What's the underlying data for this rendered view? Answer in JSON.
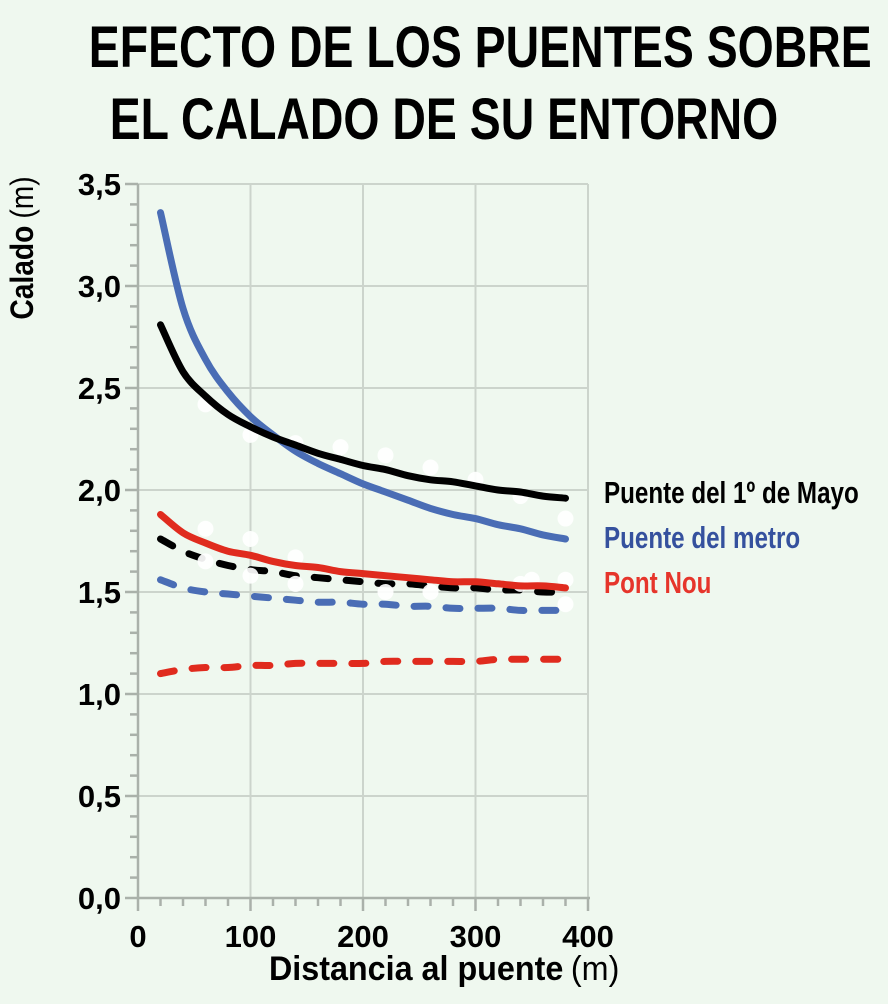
{
  "page": {
    "background": "#eff8ef"
  },
  "title": {
    "line1": "EFECTO DE LOS PUENTES SOBRE",
    "line2": "EL CALADO DE SU ENTORNO"
  },
  "colors": {
    "background": "#eff8ef",
    "grid": "#ccd4cc",
    "axis": "#aab1aa",
    "marker": "#ffffff",
    "black": "#000000",
    "blue_line": "#4a6db5",
    "red_line": "#e02b1e",
    "blue_legend": "#35519e",
    "red_legend": "#e6352b"
  },
  "legend": {
    "items": [
      {
        "label": "Puente del 1º de Mayo",
        "color": "#000000"
      },
      {
        "label": "Puente del metro",
        "color": "#35519e"
      },
      {
        "label": "Pont Nou",
        "color": "#e6352b"
      }
    ]
  },
  "chart_data": {
    "type": "line",
    "title": "EFECTO DE LOS PUENTES SOBRE EL CALADO DE SU ENTORNO",
    "xlabel": "Distancia al puente",
    "xlabel_unit": "(m)",
    "ylabel": "Calado",
    "ylabel_unit": "(m)",
    "xlim": [
      0,
      400
    ],
    "ylim": [
      0,
      3.5
    ],
    "x_major_ticks": [
      0,
      100,
      200,
      300,
      400
    ],
    "x_tick_labels": [
      "0",
      "100",
      "200",
      "300",
      "400"
    ],
    "x_minor_step": 20,
    "y_major_ticks": [
      0,
      0.5,
      1.0,
      1.5,
      2.0,
      2.5,
      3.0,
      3.5
    ],
    "y_tick_labels": [
      "0,0",
      "0,5",
      "1,0",
      "1,5",
      "2,0",
      "2,5",
      "3,0",
      "3,5"
    ],
    "y_minor_step": 0.1,
    "grid": true,
    "legend_position": "right-center",
    "x": [
      20,
      40,
      60,
      80,
      100,
      120,
      140,
      160,
      180,
      200,
      220,
      240,
      260,
      280,
      300,
      320,
      340,
      360,
      380
    ],
    "series": [
      {
        "name": "Puente del 1º de Mayo",
        "line_style": "solid",
        "color": "#000000",
        "values": [
          2.81,
          2.58,
          2.46,
          2.37,
          2.31,
          2.26,
          2.22,
          2.18,
          2.15,
          2.12,
          2.1,
          2.07,
          2.05,
          2.04,
          2.02,
          2.0,
          1.99,
          1.97,
          1.96
        ]
      },
      {
        "name": "Puente del metro",
        "line_style": "solid",
        "color": "#4a6db5",
        "values": [
          3.36,
          2.89,
          2.64,
          2.48,
          2.36,
          2.27,
          2.19,
          2.13,
          2.08,
          2.03,
          1.99,
          1.95,
          1.91,
          1.88,
          1.86,
          1.83,
          1.81,
          1.78,
          1.76
        ]
      },
      {
        "name": "Pont Nou",
        "line_style": "solid",
        "color": "#e02b1e",
        "values": [
          1.88,
          1.79,
          1.74,
          1.7,
          1.68,
          1.65,
          1.63,
          1.62,
          1.6,
          1.59,
          1.58,
          1.57,
          1.56,
          1.55,
          1.55,
          1.54,
          1.53,
          1.53,
          1.52
        ]
      },
      {
        "name": "Puente del 1º de Mayo",
        "line_style": "dashed",
        "color": "#000000",
        "values": [
          1.76,
          1.7,
          1.66,
          1.63,
          1.61,
          1.6,
          1.58,
          1.57,
          1.56,
          1.55,
          1.54,
          1.54,
          1.53,
          1.52,
          1.52,
          1.51,
          1.51,
          1.5,
          1.5
        ]
      },
      {
        "name": "Puente del metro",
        "line_style": "dashed",
        "color": "#4a6db5",
        "values": [
          1.56,
          1.52,
          1.5,
          1.49,
          1.48,
          1.47,
          1.46,
          1.45,
          1.45,
          1.44,
          1.44,
          1.43,
          1.43,
          1.42,
          1.42,
          1.42,
          1.41,
          1.41,
          1.41
        ]
      },
      {
        "name": "Pont Nou",
        "line_style": "dashed",
        "color": "#e02b1e",
        "values": [
          1.1,
          1.12,
          1.13,
          1.13,
          1.14,
          1.14,
          1.15,
          1.15,
          1.15,
          1.15,
          1.16,
          1.16,
          1.16,
          1.16,
          1.16,
          1.17,
          1.17,
          1.17,
          1.17
        ]
      }
    ],
    "white_markers": [
      {
        "x": 60,
        "y": 2.42
      },
      {
        "x": 100,
        "y": 2.27
      },
      {
        "x": 140,
        "y": 2.23
      },
      {
        "x": 180,
        "y": 2.21
      },
      {
        "x": 220,
        "y": 2.17
      },
      {
        "x": 260,
        "y": 2.11
      },
      {
        "x": 300,
        "y": 2.05
      },
      {
        "x": 340,
        "y": 1.97
      },
      {
        "x": 380,
        "y": 1.86
      },
      {
        "x": 60,
        "y": 1.81
      },
      {
        "x": 100,
        "y": 1.76
      },
      {
        "x": 140,
        "y": 1.67
      },
      {
        "x": 60,
        "y": 1.65
      },
      {
        "x": 100,
        "y": 1.58
      },
      {
        "x": 140,
        "y": 1.54
      },
      {
        "x": 220,
        "y": 1.5
      },
      {
        "x": 260,
        "y": 1.5
      },
      {
        "x": 340,
        "y": 1.54
      },
      {
        "x": 350,
        "y": 1.56
      },
      {
        "x": 380,
        "y": 1.56
      },
      {
        "x": 380,
        "y": 1.44
      }
    ]
  }
}
